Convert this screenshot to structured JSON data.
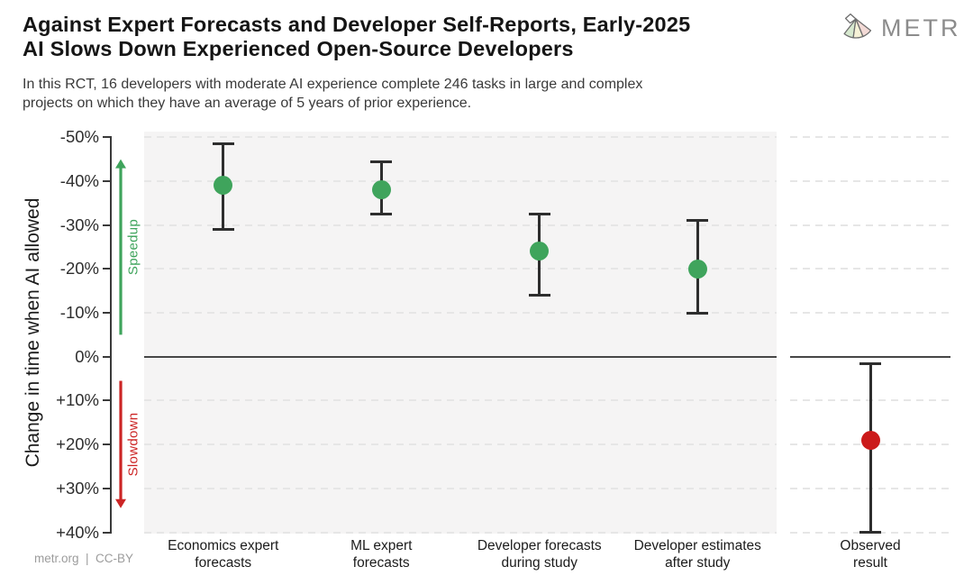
{
  "header": {
    "title_line1": "Against Expert Forecasts and Developer Self-Reports, Early-2025",
    "title_line2": "AI Slows Down Experienced Open-Source Developers",
    "subtitle_line1": "In this RCT, 16 developers with moderate AI experience complete 246 tasks in large and complex",
    "subtitle_line2": "projects on which they have an average of 5 years of prior experience.",
    "logo_text": "METR"
  },
  "footer": {
    "attribution": "metr.org  |  CC-BY"
  },
  "chart_data": {
    "type": "scatter",
    "subtype": "point-estimates-with-error-bars",
    "title": "Against Expert Forecasts and Developer Self-Reports, Early-2025 AI Slows Down Experienced Open-Source Developers",
    "xlabel": "",
    "ylabel": "Change in time when AI allowed",
    "ylim": [
      -51.3,
      40.3
    ],
    "grid": true,
    "legend": "none",
    "yticks": [
      {
        "v": -50,
        "label": "-50%"
      },
      {
        "v": -40,
        "label": "-40%"
      },
      {
        "v": -30,
        "label": "-30%"
      },
      {
        "v": -20,
        "label": "-20%"
      },
      {
        "v": -10,
        "label": "-10%"
      },
      {
        "v": 0,
        "label": "0%"
      },
      {
        "v": 10,
        "label": "+10%"
      },
      {
        "v": 20,
        "label": "+20%"
      },
      {
        "v": 30,
        "label": "+30%"
      },
      {
        "v": 40,
        "label": "+40%"
      }
    ],
    "zero_line_value": 0,
    "categories": [
      "Economics expert forecasts",
      "ML expert forecasts",
      "Developer forecasts during study",
      "Developer estimates after study",
      "Observed result"
    ],
    "points": [
      {
        "category": "Economics expert forecasts",
        "label_lines": [
          "Economics expert",
          "forecasts"
        ],
        "value": -39,
        "ci": [
          -48.5,
          -29
        ],
        "color_key": "green",
        "panel": "main"
      },
      {
        "category": "ML expert forecasts",
        "label_lines": [
          "ML expert",
          "forecasts"
        ],
        "value": -38,
        "ci": [
          -44.5,
          -32.5
        ],
        "color_key": "green",
        "panel": "main"
      },
      {
        "category": "Developer forecasts during study",
        "label_lines": [
          "Developer forecasts",
          "during study"
        ],
        "value": -24,
        "ci": [
          -32.5,
          -14
        ],
        "color_key": "green",
        "panel": "main"
      },
      {
        "category": "Developer estimates after study",
        "label_lines": [
          "Developer estimates",
          "after study"
        ],
        "value": -20,
        "ci": [
          -31,
          -10
        ],
        "color_key": "green",
        "panel": "main"
      },
      {
        "category": "Observed result",
        "label_lines": [
          "Observed",
          "result"
        ],
        "value": 19,
        "ci": [
          1.5,
          40
        ],
        "color_key": "red",
        "panel": "observed"
      }
    ],
    "annotations": {
      "speedup": {
        "label": "Speedup",
        "direction": "up",
        "value_range": [
          -45,
          -5
        ]
      },
      "slowdown": {
        "label": "Slowdown",
        "direction": "down",
        "value_range": [
          5.5,
          34.5
        ]
      }
    },
    "colors": {
      "green": "#3fa45c",
      "red": "#cb1a1a",
      "errorbar": "#2e2e2e",
      "gridline": "#e6e6e6",
      "zero_line": "#474747",
      "axis": "#3a3a3a",
      "panel_bg": "#f5f4f4",
      "speedup": "#3fa45c",
      "slowdown": "#cc2525"
    }
  }
}
